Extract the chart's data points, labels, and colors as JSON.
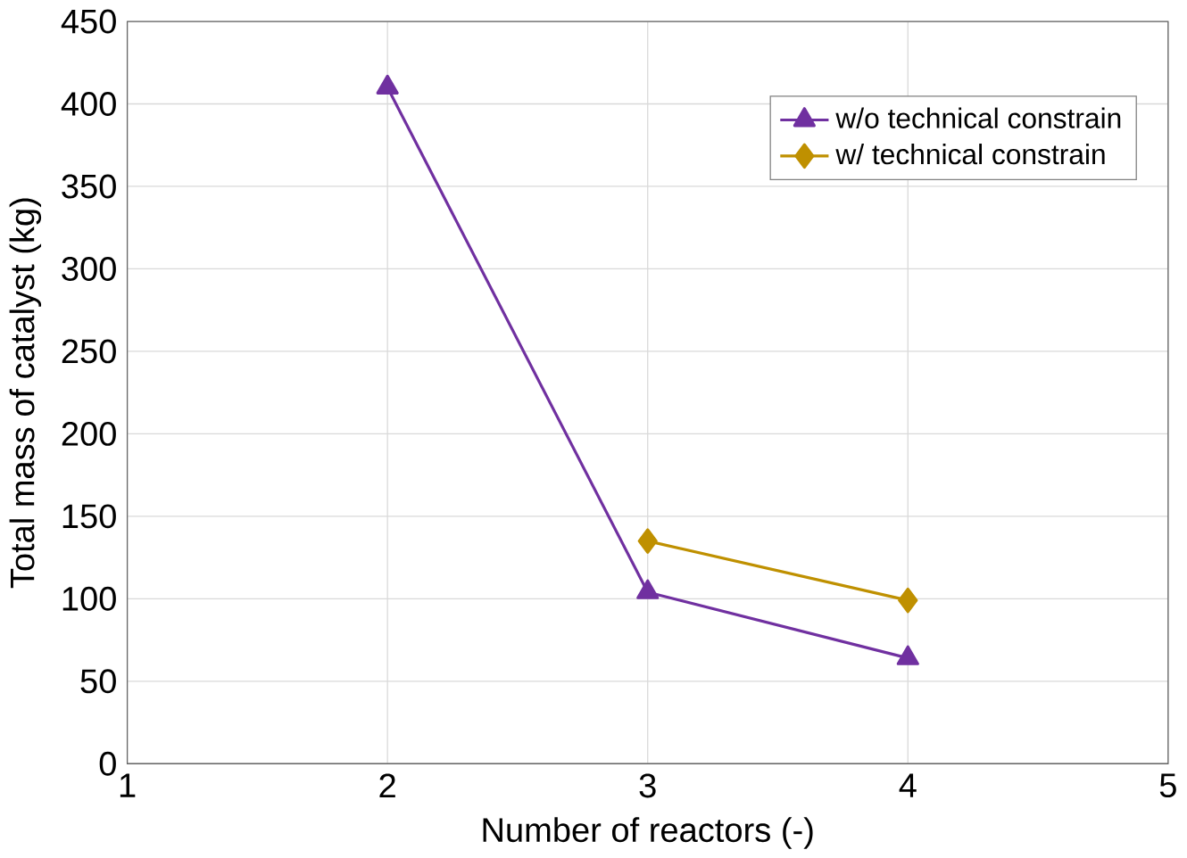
{
  "chart_data": {
    "type": "line",
    "xlabel": "Number of reactors (-)",
    "ylabel": "Total mass of catalyst (kg)",
    "xlim": [
      1,
      5
    ],
    "xticks": [
      1,
      2,
      3,
      4,
      5
    ],
    "ylim": [
      0,
      450
    ],
    "yticks": [
      0,
      50,
      100,
      150,
      200,
      250,
      300,
      350,
      400,
      450
    ],
    "grid": true,
    "legend": "top right",
    "line_style": "solid",
    "series": [
      {
        "name": "w/o technical constrain",
        "color": "#7030a0",
        "marker": "triangle",
        "x": [
          2,
          3,
          4
        ],
        "values": [
          410,
          104,
          64
        ]
      },
      {
        "name": "w/ technical constrain",
        "color": "#bf9000",
        "marker": "diamond",
        "x": [
          3,
          4
        ],
        "values": [
          135,
          99
        ]
      }
    ]
  }
}
